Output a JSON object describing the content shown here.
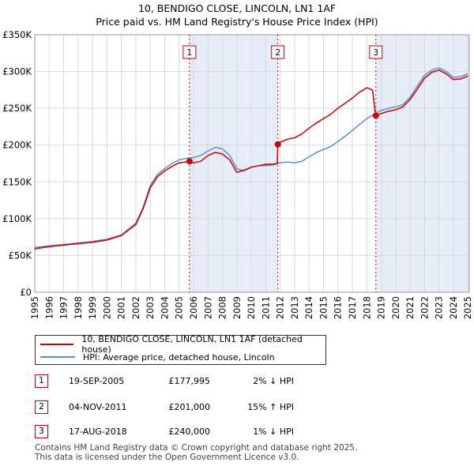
{
  "title_line1": "10, BENDIGO CLOSE, LINCOLN, LN1 1AF",
  "title_line2": "Price paid vs. HM Land Registry's House Price Index (HPI)",
  "colors": {
    "property": "#cc0000",
    "hpi": "#5b8fd0",
    "shade": "#e6ecf8",
    "grid": "#d8d8d8"
  },
  "legend": {
    "property": "10, BENDIGO CLOSE, LINCOLN, LN1 1AF (detached house)",
    "hpi": "HPI: Average price, detached house, Lincoln"
  },
  "transactions": [
    {
      "num": "1",
      "date": "19-SEP-2005",
      "price": "£177,995",
      "hpi": "2% ↓ HPI"
    },
    {
      "num": "2",
      "date": "04-NOV-2011",
      "price": "£201,000",
      "hpi": "15% ↑ HPI"
    },
    {
      "num": "3",
      "date": "17-AUG-2018",
      "price": "£240,000",
      "hpi": "1% ↓ HPI"
    }
  ],
  "footer_line1": "Contains HM Land Registry data © Crown copyright and database right 2025.",
  "footer_line2": "This data is licensed under the Open Government Licence v3.0.",
  "chart_data": {
    "type": "line",
    "title": "10, BENDIGO CLOSE, LINCOLN, LN1 1AF",
    "subtitle": "Price paid vs. HM Land Registry's House Price Index (HPI)",
    "xlim": [
      1995,
      2025.1
    ],
    "ylim": [
      0,
      350000
    ],
    "y_ticks": [
      {
        "value": 0,
        "label": "£0"
      },
      {
        "value": 50000,
        "label": "£50K"
      },
      {
        "value": 100000,
        "label": "£100K"
      },
      {
        "value": 150000,
        "label": "£150K"
      },
      {
        "value": 200000,
        "label": "£200K"
      },
      {
        "value": 250000,
        "label": "£250K"
      },
      {
        "value": 300000,
        "label": "£300K"
      },
      {
        "value": 350000,
        "label": "£350K"
      }
    ],
    "x_ticks": [
      "1995",
      "1996",
      "1997",
      "1998",
      "1999",
      "2000",
      "2001",
      "2002",
      "2003",
      "2004",
      "2005",
      "2006",
      "2007",
      "2008",
      "2009",
      "2010",
      "2011",
      "2012",
      "2013",
      "2014",
      "2015",
      "2016",
      "2017",
      "2018",
      "2019",
      "2020",
      "2021",
      "2022",
      "2023",
      "2024",
      "2025"
    ],
    "grid": true,
    "shaded_ranges": [
      [
        2005.72,
        2011.84
      ],
      [
        2018.63,
        2025.1
      ]
    ],
    "markers": [
      {
        "label": "1",
        "x": 2005.72,
        "y": 177995
      },
      {
        "label": "2",
        "x": 2011.84,
        "y": 201000
      },
      {
        "label": "3",
        "x": 2018.63,
        "y": 240000
      }
    ],
    "series": [
      {
        "name": "HPI: Average price, detached house, Lincoln",
        "color": "#5b8fd0",
        "points": [
          [
            1995,
            61000
          ],
          [
            1996,
            63000
          ],
          [
            1997,
            65000
          ],
          [
            1998,
            67000
          ],
          [
            1999,
            69000
          ],
          [
            2000,
            72000
          ],
          [
            2001,
            78000
          ],
          [
            2002,
            94000
          ],
          [
            2002.5,
            115000
          ],
          [
            2003,
            145000
          ],
          [
            2003.5,
            160000
          ],
          [
            2004,
            168000
          ],
          [
            2004.5,
            175000
          ],
          [
            2005,
            180000
          ],
          [
            2005.5,
            182000
          ],
          [
            2006,
            183000
          ],
          [
            2006.5,
            186000
          ],
          [
            2007,
            192000
          ],
          [
            2007.5,
            197000
          ],
          [
            2008,
            195000
          ],
          [
            2008.5,
            186000
          ],
          [
            2009,
            168000
          ],
          [
            2009.5,
            165000
          ],
          [
            2010,
            170000
          ],
          [
            2010.5,
            172000
          ],
          [
            2011,
            172000
          ],
          [
            2011.5,
            173000
          ],
          [
            2011.84,
            175000
          ],
          [
            2012,
            176000
          ],
          [
            2012.5,
            177000
          ],
          [
            2013,
            176000
          ],
          [
            2013.5,
            178000
          ],
          [
            2014,
            184000
          ],
          [
            2014.5,
            190000
          ],
          [
            2015,
            194000
          ],
          [
            2015.5,
            198000
          ],
          [
            2016,
            205000
          ],
          [
            2016.5,
            212000
          ],
          [
            2017,
            220000
          ],
          [
            2017.5,
            228000
          ],
          [
            2018,
            236000
          ],
          [
            2018.5,
            242000
          ],
          [
            2018.63,
            243000
          ],
          [
            2019,
            247000
          ],
          [
            2019.5,
            250000
          ],
          [
            2020,
            252000
          ],
          [
            2020.5,
            255000
          ],
          [
            2021,
            265000
          ],
          [
            2021.5,
            280000
          ],
          [
            2022,
            295000
          ],
          [
            2022.5,
            302000
          ],
          [
            2023,
            305000
          ],
          [
            2023.5,
            300000
          ],
          [
            2024,
            292000
          ],
          [
            2024.5,
            293000
          ],
          [
            2025,
            297000
          ]
        ]
      },
      {
        "name": "10, BENDIGO CLOSE, LINCOLN, LN1 1AF (detached house)",
        "color": "#cc0000",
        "points": [
          [
            1995,
            59000
          ],
          [
            1996,
            62000
          ],
          [
            1997,
            64000
          ],
          [
            1998,
            66000
          ],
          [
            1999,
            68000
          ],
          [
            2000,
            71000
          ],
          [
            2001,
            77000
          ],
          [
            2002,
            92000
          ],
          [
            2002.5,
            113000
          ],
          [
            2003,
            142000
          ],
          [
            2003.5,
            157000
          ],
          [
            2004,
            165000
          ],
          [
            2004.5,
            171000
          ],
          [
            2005,
            176000
          ],
          [
            2005.5,
            177000
          ],
          [
            2005.72,
            177995
          ],
          [
            2006,
            176000
          ],
          [
            2006.5,
            178000
          ],
          [
            2007,
            186000
          ],
          [
            2007.5,
            190000
          ],
          [
            2008,
            188000
          ],
          [
            2008.5,
            180000
          ],
          [
            2009,
            163000
          ],
          [
            2009.5,
            166000
          ],
          [
            2010,
            170000
          ],
          [
            2010.5,
            172000
          ],
          [
            2011,
            174000
          ],
          [
            2011.5,
            174000
          ],
          [
            2011.8,
            175000
          ],
          [
            2011.84,
            201000
          ],
          [
            2012,
            204000
          ],
          [
            2012.5,
            208000
          ],
          [
            2013,
            210000
          ],
          [
            2013.5,
            215000
          ],
          [
            2014,
            223000
          ],
          [
            2014.5,
            230000
          ],
          [
            2015,
            236000
          ],
          [
            2015.5,
            242000
          ],
          [
            2016,
            250000
          ],
          [
            2016.5,
            257000
          ],
          [
            2017,
            264000
          ],
          [
            2017.5,
            272000
          ],
          [
            2018,
            278000
          ],
          [
            2018.4,
            275000
          ],
          [
            2018.6,
            242000
          ],
          [
            2018.63,
            240000
          ],
          [
            2019,
            243000
          ],
          [
            2019.5,
            246000
          ],
          [
            2020,
            248000
          ],
          [
            2020.5,
            252000
          ],
          [
            2021,
            262000
          ],
          [
            2021.5,
            276000
          ],
          [
            2022,
            291000
          ],
          [
            2022.5,
            299000
          ],
          [
            2023,
            302000
          ],
          [
            2023.5,
            297000
          ],
          [
            2024,
            289000
          ],
          [
            2024.5,
            290000
          ],
          [
            2025,
            294000
          ]
        ]
      }
    ]
  }
}
